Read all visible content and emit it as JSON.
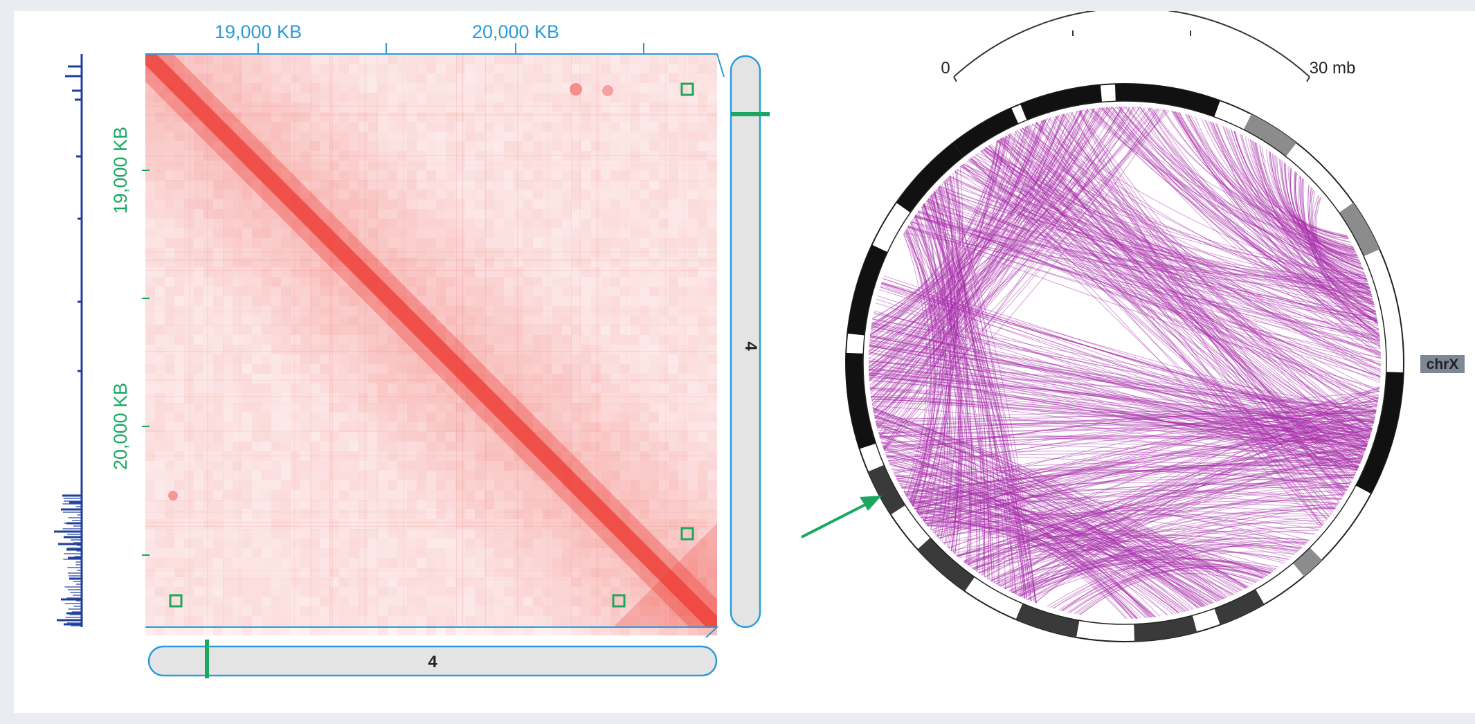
{
  "heatmap": {
    "top_axis_labels": [
      "19,000 KB",
      "20,000 KB"
    ],
    "left_axis_labels": [
      "19,000 KB",
      "20,000 KB"
    ],
    "chromosome_bottom_label": "4",
    "chromosome_right_label": "4",
    "colors": {
      "heat": "#ee3b34",
      "axis_top": "#2b9bd8",
      "axis_left": "#1aa860",
      "highlight_box": "#1aa860",
      "signal_track": "#1e3c9a",
      "ideogram_fill": "#e4e4e4",
      "ideogram_stroke": "#2b9bd8"
    },
    "highlighted_contacts": 4
  },
  "circos": {
    "scale_start_label": "0",
    "scale_end_label": "30 mb",
    "chromosome_tag": "chrX",
    "colors": {
      "links": "#a72aa8",
      "band_dark": "#111111",
      "band_mid": "#3a3a3a",
      "band_gray": "#8c8c8c",
      "band_light": "#ffffff",
      "arrow": "#1aa860",
      "tag_bg": "#7d8896",
      "tag_text": "#222222"
    }
  }
}
